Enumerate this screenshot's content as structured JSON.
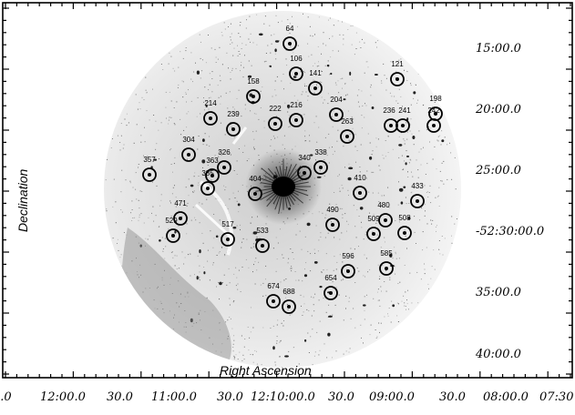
{
  "axes": {
    "x_title": "Right Ascension",
    "y_title": "Declination",
    "dec_ticks": [
      "15:00.0",
      "20:00.0",
      "25:00.0",
      "-52:30:00.0",
      "35:00.0",
      "40:00.0"
    ],
    "ra_ticks": [
      "0.0",
      "12:00.0",
      "30.0",
      "11:00.0",
      "30.0",
      "12:10:00.0",
      "30.0",
      "09:00.0",
      "30.0",
      "08:00.0",
      "07:30"
    ]
  },
  "sources": [
    {
      "id": "64"
    },
    {
      "id": "106"
    },
    {
      "id": "121"
    },
    {
      "id": "141"
    },
    {
      "id": "158"
    },
    {
      "id": "198"
    },
    {
      "id": "204"
    },
    {
      "id": "214"
    },
    {
      "id": "216"
    },
    {
      "id": "222"
    },
    {
      "id": "236"
    },
    {
      "id": "239"
    },
    {
      "id": "241"
    },
    {
      "id": "242"
    },
    {
      "id": "263"
    },
    {
      "id": "304"
    },
    {
      "id": "326"
    },
    {
      "id": "338"
    },
    {
      "id": "340"
    },
    {
      "id": "357"
    },
    {
      "id": "363"
    },
    {
      "id": "385"
    },
    {
      "id": "404"
    },
    {
      "id": "410"
    },
    {
      "id": "433"
    },
    {
      "id": "471"
    },
    {
      "id": "480"
    },
    {
      "id": "490"
    },
    {
      "id": "509"
    },
    {
      "id": "508"
    },
    {
      "id": "517"
    },
    {
      "id": "529"
    },
    {
      "id": "533"
    },
    {
      "id": "585"
    },
    {
      "id": "596"
    },
    {
      "id": "654"
    },
    {
      "id": "674"
    },
    {
      "id": "688"
    }
  ]
}
